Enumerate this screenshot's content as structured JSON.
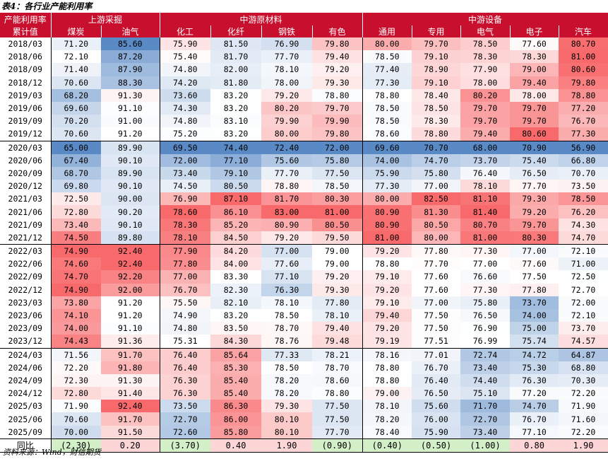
{
  "title": "表4：各行业产能利用率",
  "source": "资料来源：Wind，财信期货",
  "header": {
    "corner_top": "产能利用率",
    "corner_bottom": "累计值",
    "groups": [
      {
        "label": "上游采掘",
        "span": 2
      },
      {
        "label": "中游原材料",
        "span": 4
      },
      {
        "label": "中游设备",
        "span": 5
      }
    ],
    "columns": [
      "煤炭",
      "油气",
      "化工",
      "化纤",
      "钢铁",
      "有色",
      "通用",
      "专用",
      "电气",
      "电子",
      "汽车"
    ]
  },
  "rows": [
    {
      "date": "2018/03",
      "values": [
        "71.20",
        "85.60",
        "75.90",
        "81.50",
        "76.90",
        "79.80",
        "80.00",
        "79.70",
        "78.50",
        "77.60",
        "80.70"
      ]
    },
    {
      "date": "2018/06",
      "values": [
        "72.10",
        "87.20",
        "75.40",
        "81.70",
        "77.70",
        "79.40",
        "78.50",
        "79.10",
        "78.30",
        "78.30",
        "81.00"
      ]
    },
    {
      "date": "2018/09",
      "values": [
        "71.40",
        "87.90",
        "74.80",
        "82.00",
        "78.10",
        "79.20",
        "77.40",
        "78.90",
        "77.90",
        "79.00",
        "80.60"
      ]
    },
    {
      "date": "2018/12",
      "values": [
        "70.60",
        "88.30",
        "74.20",
        "81.80",
        "78.00",
        "79.30",
        "77.30",
        "79.10",
        "78.00",
        "79.40",
        "79.80"
      ]
    },
    {
      "date": "2019/03",
      "values": [
        "68.20",
        "91.30",
        "73.60",
        "83.20",
        "79.20",
        "78.80",
        "78.80",
        "78.40",
        "80.20",
        "78.00",
        "78.80"
      ]
    },
    {
      "date": "2019/06",
      "values": [
        "69.60",
        "91.10",
        "74.30",
        "83.20",
        "80.20",
        "79.70",
        "78.50",
        "78.50",
        "79.70",
        "79.70",
        "77.20"
      ]
    },
    {
      "date": "2019/09",
      "values": [
        "70.20",
        "91.00",
        "74.80",
        "83.10",
        "79.90",
        "79.90",
        "78.50",
        "78.30",
        "79.70",
        "79.70",
        "76.70"
      ]
    },
    {
      "date": "2019/12",
      "values": [
        "70.60",
        "91.20",
        "75.20",
        "83.20",
        "80.00",
        "79.80",
        "78.60",
        "78.80",
        "79.40",
        "80.60",
        "77.30"
      ]
    },
    {
      "date": "2020/03",
      "values": [
        "65.00",
        "89.90",
        "69.50",
        "74.40",
        "72.40",
        "72.00",
        "69.60",
        "70.70",
        "68.00",
        "70.90",
        "56.90"
      ]
    },
    {
      "date": "2020/06",
      "values": [
        "67.40",
        "90.10",
        "72.00",
        "77.10",
        "75.60",
        "75.80",
        "74.00",
        "74.70",
        "73.70",
        "75.40",
        "66.80"
      ]
    },
    {
      "date": "2020/09",
      "values": [
        "68.70",
        "89.90",
        "73.40",
        "79.10",
        "77.70",
        "77.50",
        "75.90",
        "75.80",
        "76.40",
        "76.50",
        "70.70"
      ]
    },
    {
      "date": "2020/12",
      "values": [
        "69.80",
        "90.10",
        "74.50",
        "80.50",
        "78.80",
        "78.50",
        "77.30",
        "77.00",
        "78.10",
        "77.70",
        "73.50"
      ]
    },
    {
      "date": "2021/03",
      "values": [
        "72.50",
        "90.00",
        "76.90",
        "87.10",
        "81.70",
        "80.30",
        "80.00",
        "82.50",
        "81.10",
        "79.30",
        "78.50"
      ]
    },
    {
      "date": "2021/06",
      "values": [
        "72.80",
        "90.20",
        "78.60",
        "86.10",
        "83.00",
        "81.00",
        "80.90",
        "81.30",
        "81.40",
        "79.20",
        "76.20"
      ]
    },
    {
      "date": "2021/09",
      "values": [
        "73.40",
        "90.10",
        "78.30",
        "85.20",
        "80.90",
        "80.50",
        "80.90",
        "80.50",
        "80.70",
        "79.70",
        "74.30"
      ]
    },
    {
      "date": "2021/12",
      "values": [
        "74.50",
        "89.80",
        "78.10",
        "84.50",
        "79.20",
        "79.50",
        "81.00",
        "80.00",
        "81.00",
        "80.30",
        "74.70"
      ]
    },
    {
      "date": "2022/03",
      "values": [
        "74.90",
        "92.40",
        "77.90",
        "84.20",
        "77.00",
        "79.00",
        "79.20",
        "77.80",
        "77.30",
        "77.00",
        "72.10"
      ]
    },
    {
      "date": "2022/06",
      "values": [
        "74.60",
        "92.40",
        "77.80",
        "84.00",
        "77.60",
        "79.00",
        "78.80",
        "77.70",
        "77.00",
        "77.60",
        "71.00"
      ]
    },
    {
      "date": "2022/09",
      "values": [
        "74.70",
        "92.20",
        "77.00",
        "83.30",
        "77.10",
        "79.20",
        "79.10",
        "77.60",
        "76.60",
        "77.50",
        "72.50"
      ]
    },
    {
      "date": "2022/12",
      "values": [
        "74.90",
        "92.00",
        "76.70",
        "82.30",
        "76.30",
        "79.30",
        "79.20",
        "77.60",
        "77.30",
        "77.80",
        "72.70"
      ]
    },
    {
      "date": "2023/03",
      "values": [
        "73.80",
        "91.20",
        "75.50",
        "82.10",
        "78.10",
        "77.80",
        "79.10",
        "77.00",
        "75.80",
        "73.70",
        "72.00"
      ]
    },
    {
      "date": "2023/06",
      "values": [
        "74.10",
        "91.20",
        "74.90",
        "83.20",
        "78.50",
        "78.10",
        "79.40",
        "77.50",
        "76.50",
        "74.00",
        "72.10"
      ]
    },
    {
      "date": "2023/09",
      "values": [
        "74.00",
        "91.10",
        "74.80",
        "83.50",
        "78.70",
        "79.40",
        "79.20",
        "77.50",
        "76.90",
        "75.00",
        "73.70"
      ]
    },
    {
      "date": "2023/12",
      "values": [
        "74.43",
        "91.36",
        "75.31",
        "84.30",
        "78.76",
        "79.48",
        "79.19",
        "77.51",
        "76.99",
        "75.74",
        "74.57"
      ]
    },
    {
      "date": "2024/03",
      "values": [
        "71.56",
        "91.70",
        "76.40",
        "85.64",
        "77.33",
        "78.21",
        "78.16",
        "77.01",
        "72.74",
        "74.72",
        "64.87"
      ]
    },
    {
      "date": "2024/06",
      "values": [
        "72.20",
        "91.80",
        "76.40",
        "85.30",
        "78.50",
        "78.70",
        "78.80",
        "76.70",
        "73.40",
        "75.30",
        "68.80"
      ]
    },
    {
      "date": "2024/09",
      "values": [
        "72.30",
        "91.30",
        "76.30",
        "85.40",
        "78.20",
        "78.60",
        "78.80",
        "76.40",
        "74.40",
        "76.30",
        "70.30"
      ]
    },
    {
      "date": "2024/12",
      "values": [
        "72.80",
        "91.40",
        "76.30",
        "85.40",
        "78.20",
        "78.80",
        "79.00",
        "76.50",
        "75.10",
        "77.20",
        "72.20"
      ]
    },
    {
      "date": "2025/03",
      "values": [
        "71.90",
        "92.40",
        "73.50",
        "86.30",
        "79.30",
        "77.50",
        "78.10",
        "75.60",
        "71.70",
        "74.70",
        "71.90"
      ]
    },
    {
      "date": "2025/06",
      "values": [
        "70.60",
        "91.70",
        "72.70",
        "86.00",
        "80.10",
        "77.50",
        "78.20",
        "76.00",
        "72.70",
        "76.70",
        "71.60"
      ]
    },
    {
      "date": "2025/09",
      "values": [
        "70.00",
        "91.50",
        "72.60",
        "85.80",
        "80.10",
        "77.70",
        "78.40",
        "75.90",
        "73.40",
        "77.10",
        "72.20"
      ]
    }
  ],
  "footer": {
    "label": "同比",
    "values": [
      "(2.30)",
      "0.20",
      "(3.70)",
      "0.40",
      "1.90",
      "(0.90)",
      "(0.40)",
      "(0.50)",
      "(1.00)",
      "0.80",
      "1.90"
    ]
  },
  "colors": {
    "header_bg": "#c8102e",
    "high": "#f8696b",
    "mid": "#ffffff",
    "low": "#5a8ac6",
    "footer_positive": "#fcd6d6",
    "footer_negative": "#d2efc8"
  }
}
